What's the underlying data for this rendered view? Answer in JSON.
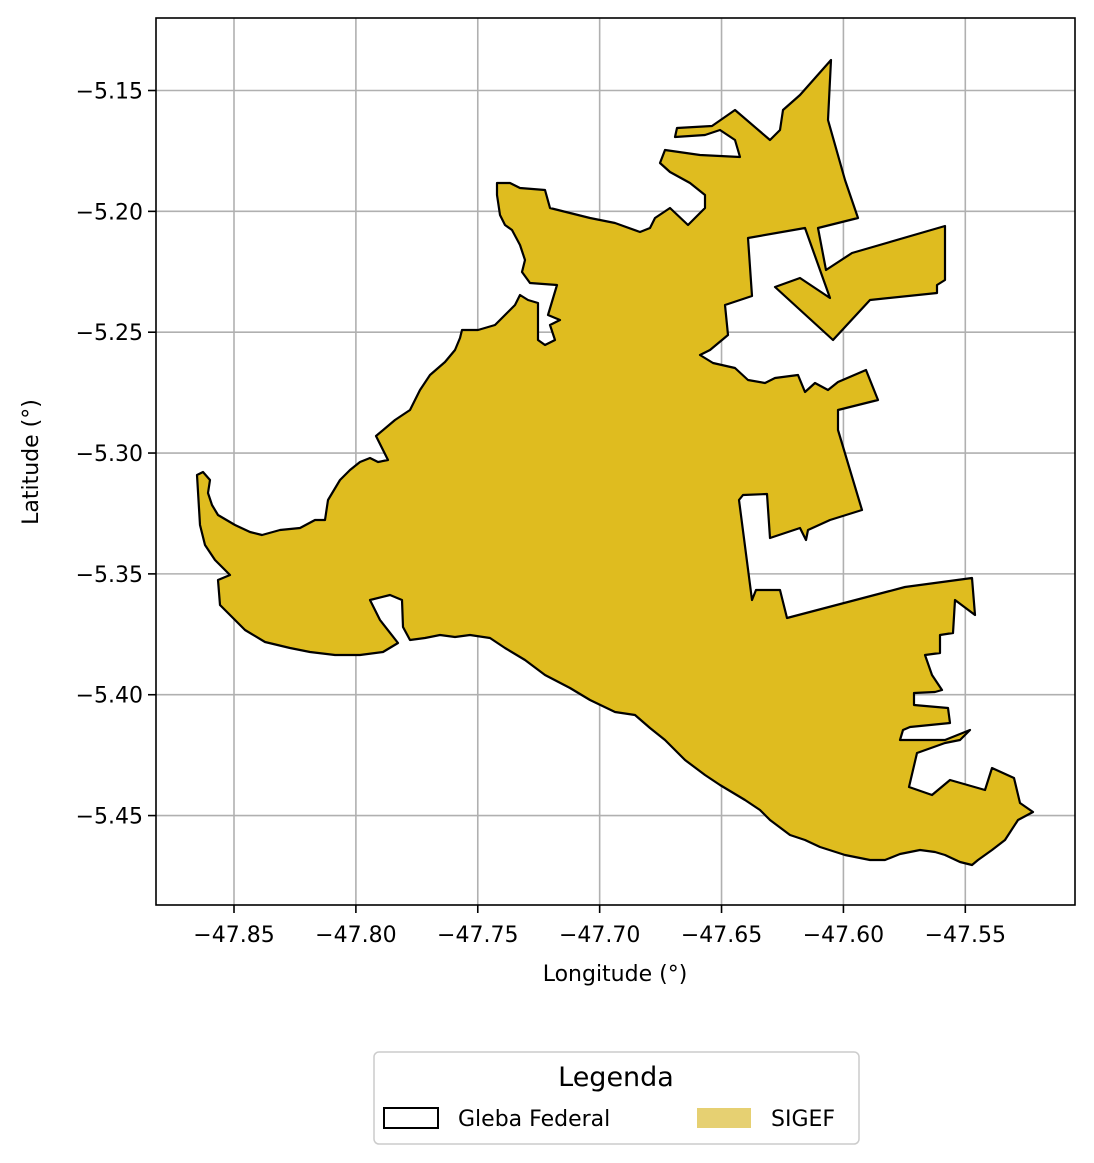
{
  "map": {
    "xlabel": "Longitude (°)",
    "ylabel": "Latitude (°)",
    "x_ticks": [
      "−47.85",
      "−47.80",
      "−47.75",
      "−47.70",
      "−47.65",
      "−47.60",
      "−47.55"
    ],
    "y_ticks": [
      "−5.15",
      "−5.20",
      "−5.25",
      "−5.30",
      "−5.35",
      "−5.40",
      "−5.45"
    ],
    "grid": true,
    "fill_color": "#dfbc1f",
    "outline_color": "#000000"
  },
  "legend": {
    "title": "Legenda",
    "items": [
      {
        "label": "Gleba Federal",
        "swatch": "outline"
      },
      {
        "label": "SIGEF",
        "swatch": "#e6d072"
      }
    ]
  },
  "chart_data": {
    "type": "map",
    "xlabel": "Longitude (°)",
    "ylabel": "Latitude (°)",
    "xlim": [
      -47.882,
      -47.505
    ],
    "ylim": [
      -5.487,
      -5.12
    ],
    "x_ticks": [
      -47.85,
      -47.8,
      -47.75,
      -47.7,
      -47.65,
      -47.6,
      -47.55
    ],
    "y_ticks": [
      -5.15,
      -5.2,
      -5.25,
      -5.3,
      -5.35,
      -5.4,
      -5.45
    ],
    "grid": true,
    "legend_title": "Legenda",
    "legend_position": "bottom-center",
    "series": [
      {
        "name": "Gleba Federal",
        "style": "black outline, no fill"
      },
      {
        "name": "SIGEF",
        "style": "gold fill",
        "color": "#dfbc1f"
      }
    ]
  }
}
